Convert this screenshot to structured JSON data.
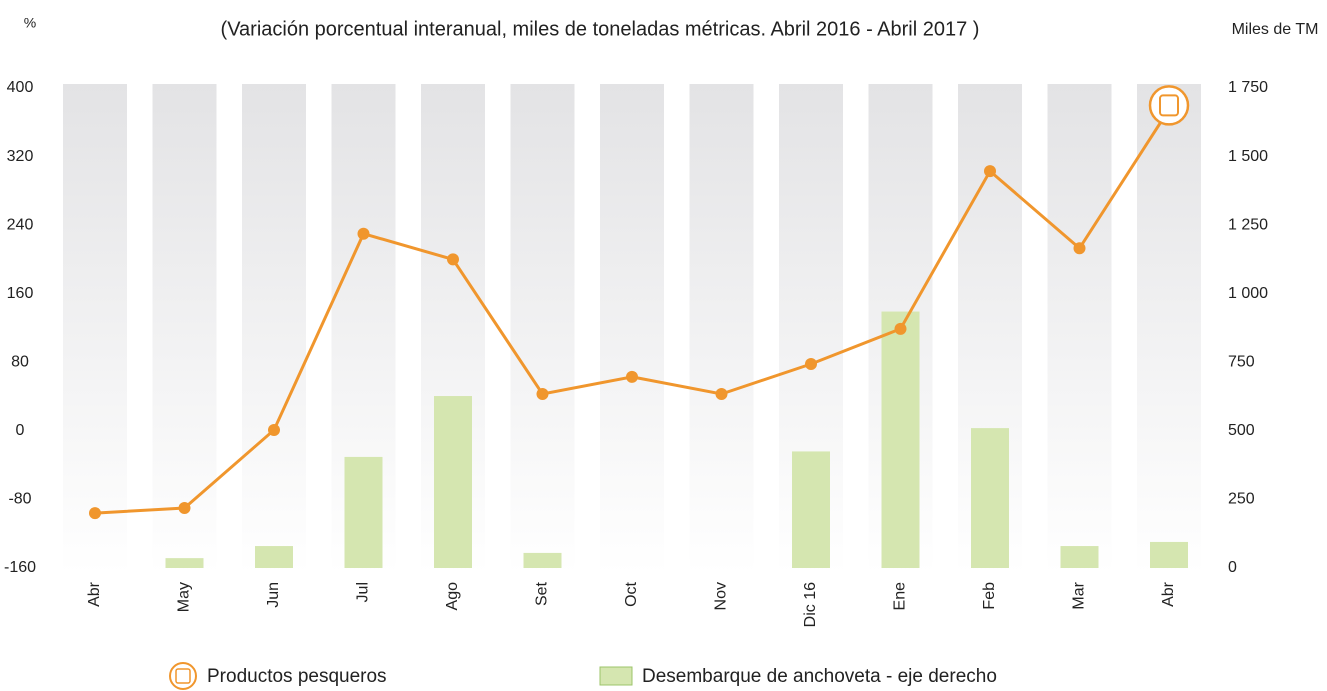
{
  "chart_data": {
    "type": "bar-line",
    "title": "(Variación porcentual interanual, miles de toneladas métricas. Abril 2016  -  Abril 2017 )",
    "y_label": "%",
    "y2_label": "Miles de TM",
    "categories": [
      "Abr",
      "May",
      "Jun",
      "Jul",
      "Ago",
      "Set",
      "Oct",
      "Nov",
      "Dic 16",
      "Ene",
      "Feb",
      "Mar",
      "Abr"
    ],
    "series": [
      {
        "name": "Productos pesqueros",
        "color": "#f0962d",
        "kind": "line",
        "axis": "y",
        "values": [
          -96,
          -90,
          1,
          230,
          200,
          43,
          63,
          43,
          78,
          119,
          303,
          213,
          375
        ]
      },
      {
        "name": "Desembarque de anchoveta - eje derecho",
        "color": "#d5e6b0",
        "kind": "bar",
        "axis": "y2",
        "values": [
          0,
          36,
          80,
          405,
          627,
          55,
          0,
          0,
          425,
          935,
          510,
          80,
          95
        ]
      }
    ],
    "ylim": [
      -160,
      400
    ],
    "yticks": [
      -160,
      -80,
      0,
      80,
      160,
      240,
      320,
      400
    ],
    "y2lim": [
      0,
      1750
    ],
    "y2ticks": [
      0,
      250,
      500,
      750,
      {
        "value": 1000,
        "label": "1 000"
      },
      {
        "value": 1250,
        "label": "1 250"
      },
      {
        "value": 1500,
        "label": "1 500"
      },
      {
        "value": 1750,
        "label": "1 750"
      }
    ]
  }
}
